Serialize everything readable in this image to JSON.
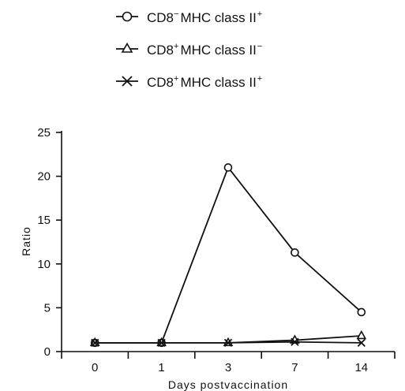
{
  "chart_data": {
    "type": "line",
    "categories": [
      "0",
      "1",
      "3",
      "7",
      "14"
    ],
    "xlabel": "Days postvaccination",
    "ylabel": "Ratio",
    "ylim": [
      0,
      25
    ],
    "yticks": [
      "0",
      "5",
      "10",
      "15",
      "20",
      "25"
    ],
    "grid": false,
    "legend_position": "top",
    "series": [
      {
        "name_main": "CD8",
        "name_sup1": "−",
        "name_mid": "MHC class II",
        "name_sup2": "+",
        "marker": "circle",
        "values": [
          1.0,
          1.0,
          21.0,
          11.3,
          4.5
        ]
      },
      {
        "name_main": "CD8",
        "name_sup1": "+",
        "name_mid": "MHC class II",
        "name_sup2": "−",
        "marker": "triangle",
        "values": [
          1.0,
          1.0,
          1.0,
          1.3,
          1.8
        ]
      },
      {
        "name_main": "CD8",
        "name_sup1": "+",
        "name_mid": "MHC class II",
        "name_sup2": "+",
        "marker": "x",
        "values": [
          1.0,
          1.0,
          1.0,
          1.1,
          1.0
        ]
      }
    ]
  }
}
